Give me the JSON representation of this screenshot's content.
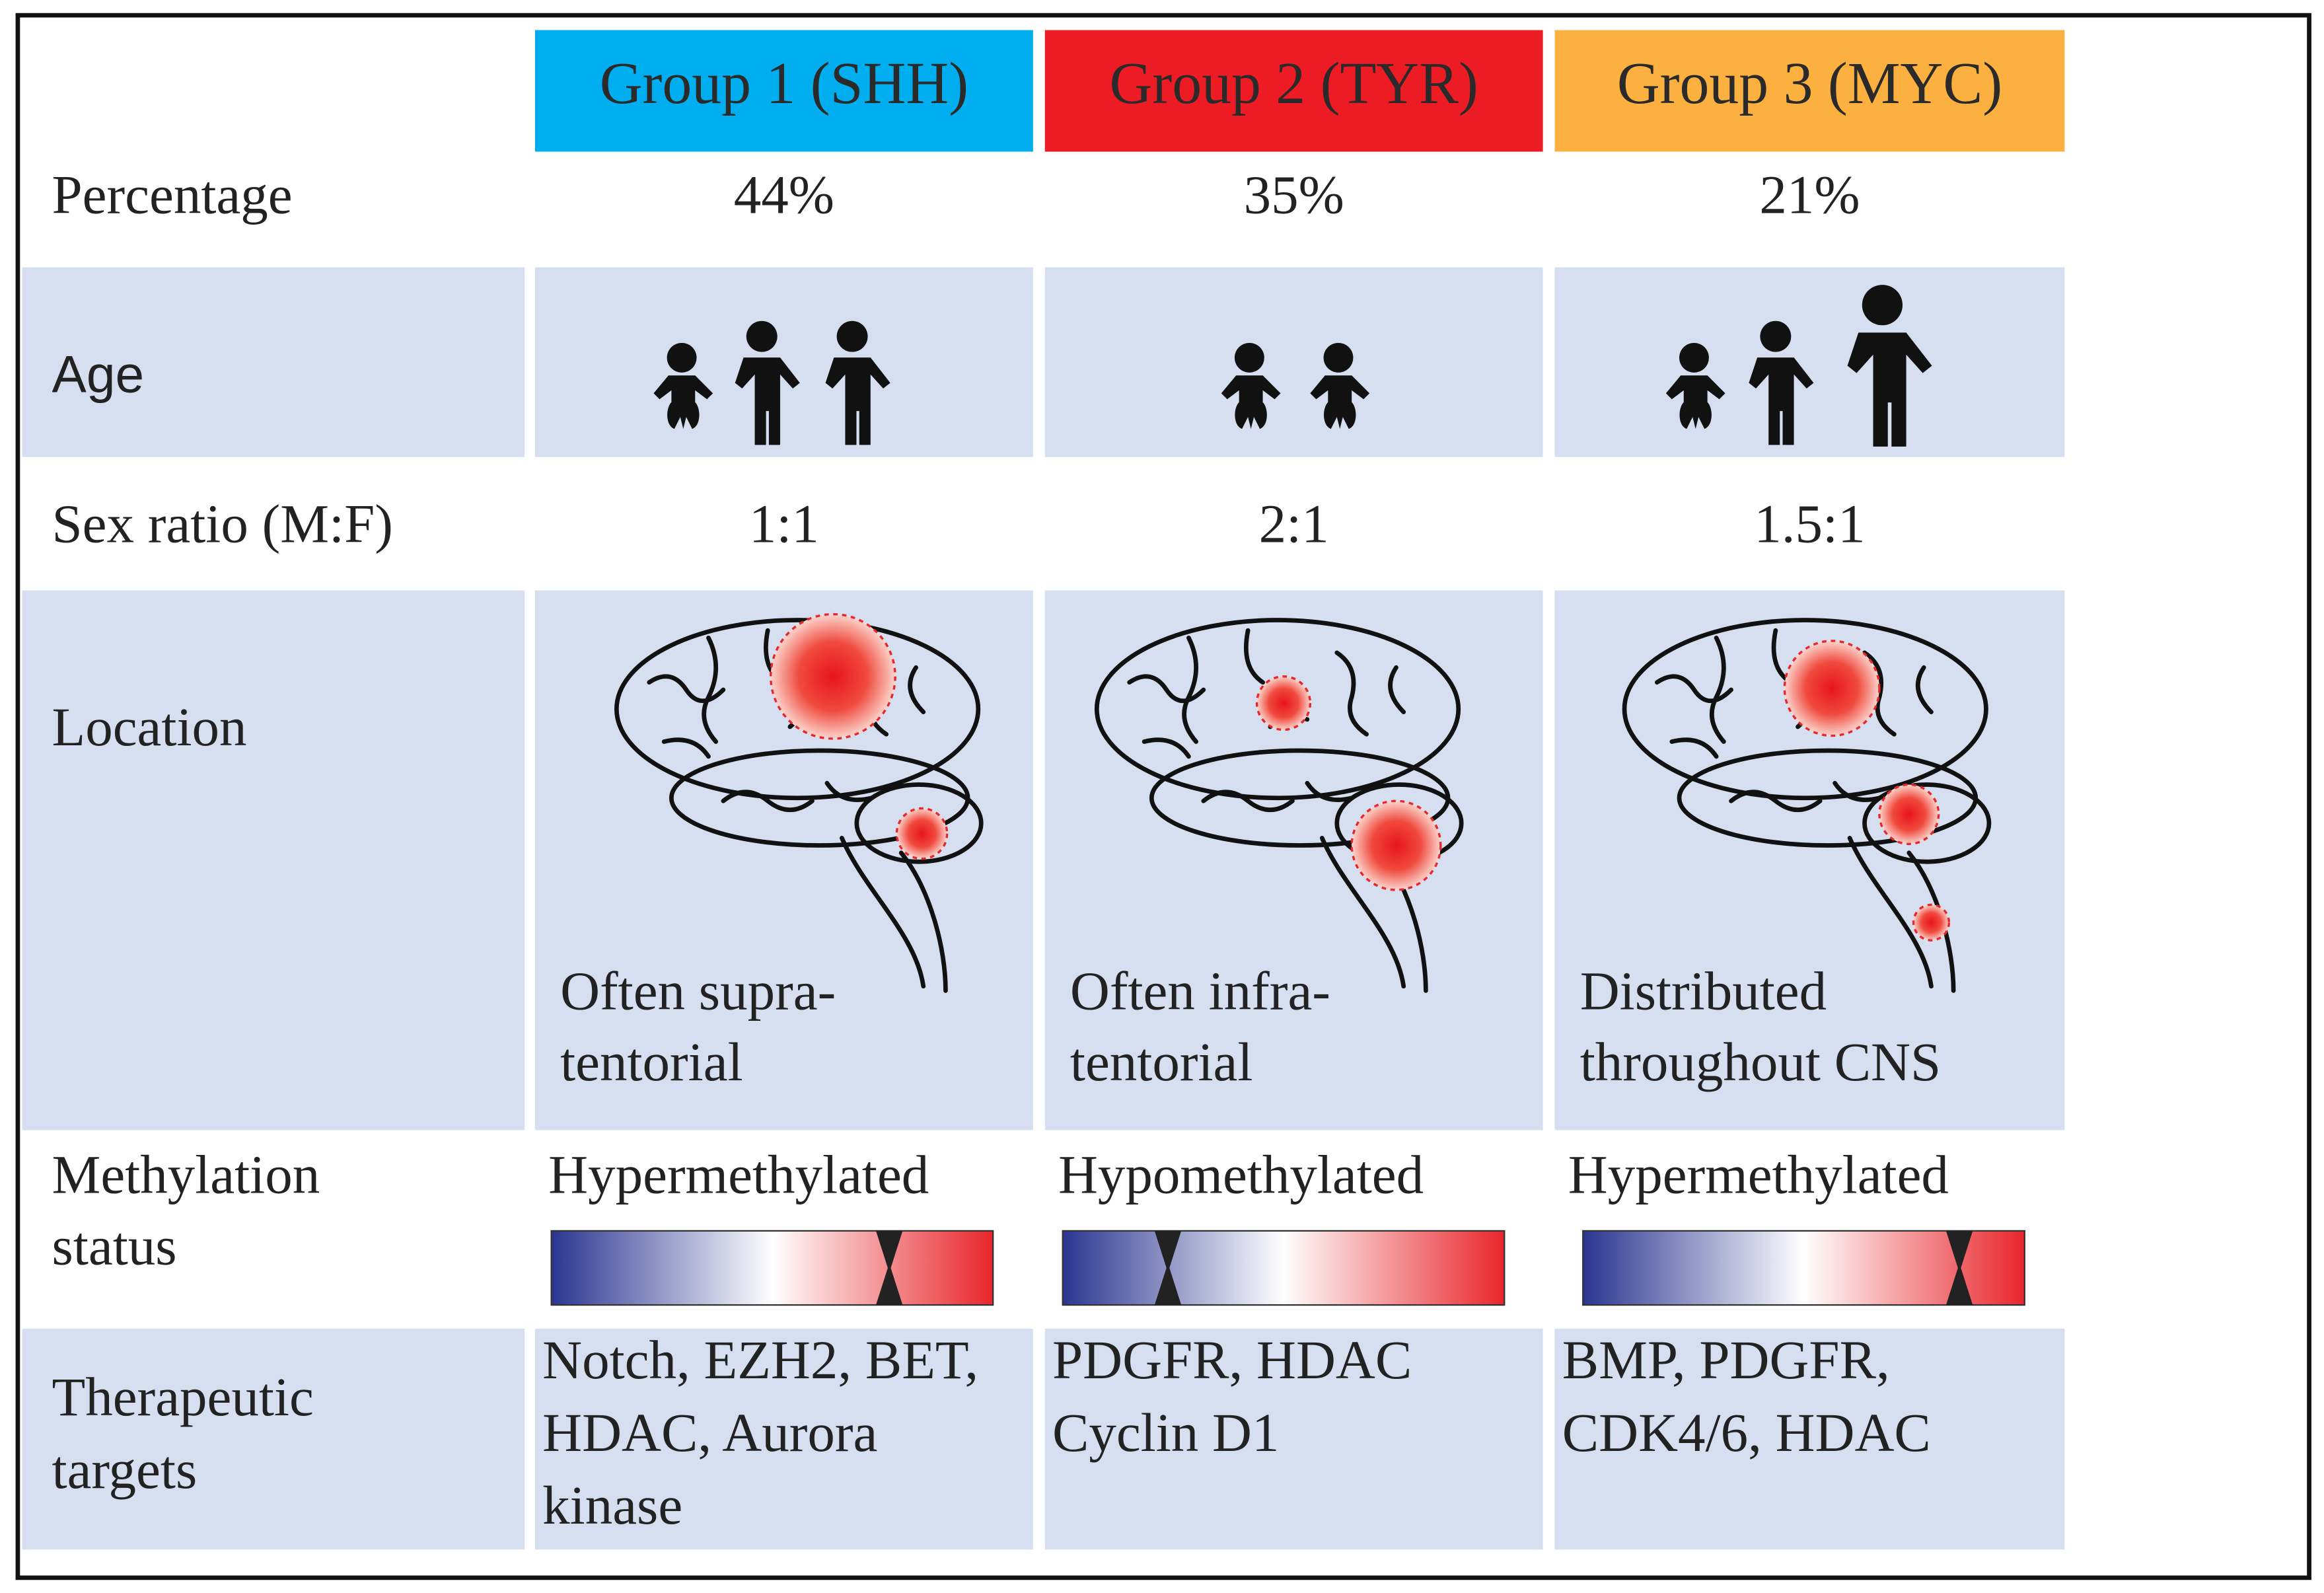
{
  "header": {
    "groups": [
      "Group 1 (SHH)",
      "Group 2 (TYR)",
      "Group 3 (MYC)"
    ]
  },
  "rows": [
    {
      "label": [
        "Percentage"
      ],
      "cells": [
        [
          "44%"
        ],
        [
          "35%"
        ],
        [
          "21%"
        ]
      ]
    },
    {
      "label": [
        "Age"
      ]
    },
    {
      "label": [
        "Sex ratio (M:F)"
      ],
      "cells": [
        [
          "1:1"
        ],
        [
          "2:1"
        ],
        [
          "1.5:1"
        ]
      ]
    },
    {
      "label": [
        "Location"
      ],
      "cells": [
        [
          "Often supra-",
          "tentorial"
        ],
        [
          "Often infra-",
          "tentorial"
        ],
        [
          "Distributed",
          "throughout CNS"
        ]
      ]
    },
    {
      "label": [
        "Methylation",
        "status"
      ],
      "cells": [
        [
          "Hypermethylated"
        ],
        [
          "Hypomethylated"
        ],
        [
          "Hypermethylated"
        ]
      ]
    },
    {
      "label": [
        "Therapeutic",
        "targets"
      ],
      "cells": [
        [
          "Notch, EZH2, BET,",
          "HDAC, Aurora",
          "kinase"
        ],
        [
          "PDGFR, HDAC",
          "Cyclin D1"
        ],
        [
          "BMP, PDGFR,",
          "CDK4/6, HDAC"
        ]
      ]
    }
  ]
}
